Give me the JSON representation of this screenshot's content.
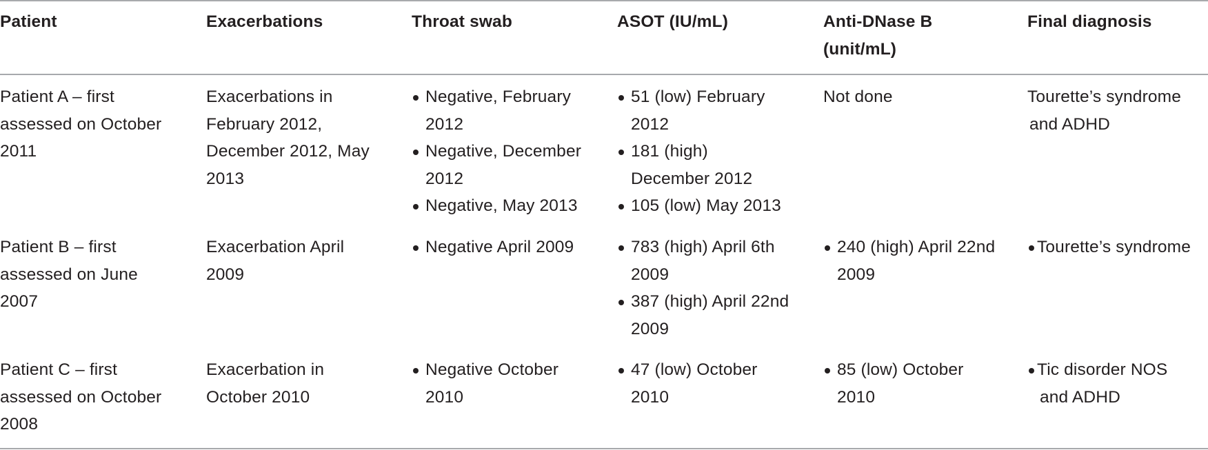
{
  "headers": {
    "patient": "Patient",
    "exacerbations": "Exacerbations",
    "throat_swab": "Throat swab",
    "asot": "ASOT (IU/mL)",
    "anti_dnase_line1": "Anti-DNase B",
    "anti_dnase_line2": "(unit/mL)",
    "final_diagnosis": "Final diagnosis"
  },
  "rows": [
    {
      "patient": [
        "Patient A – first",
        "assessed on October",
        "2011"
      ],
      "exacerbations": [
        "Exacerbations in",
        "February 2012,",
        "December 2012, May",
        "2013"
      ],
      "throat_swab": [
        [
          "Negative, February",
          "2012"
        ],
        [
          "Negative, December",
          "2012"
        ],
        [
          "Negative, May 2013"
        ]
      ],
      "asot": [
        [
          "51 (low) February",
          "2012"
        ],
        [
          "181 (high)",
          "December 2012"
        ],
        [
          "105 (low) May 2013"
        ]
      ],
      "anti_dnase": [
        "Not done"
      ],
      "final_diagnosis": [
        "Tourette’s syndrome",
        "and ADHD"
      ]
    },
    {
      "patient": [
        "Patient B – first",
        "assessed on June",
        "2007"
      ],
      "exacerbations": [
        "Exacerbation April",
        "2009"
      ],
      "throat_swab": [
        [
          "Negative April 2009"
        ]
      ],
      "asot": [
        [
          "783 (high) April 6th",
          "2009"
        ],
        [
          "387 (high) April 22nd",
          "2009"
        ]
      ],
      "anti_dnase": [
        [
          "240 (high) April 22nd",
          "2009"
        ]
      ],
      "final_diagnosis": [
        [
          "Tourette’s syndrome"
        ]
      ]
    },
    {
      "patient": [
        "Patient C – first",
        "assessed on October",
        "2008"
      ],
      "exacerbations": [
        "Exacerbation in",
        "October 2010"
      ],
      "throat_swab": [
        [
          "Negative October",
          "2010"
        ]
      ],
      "asot": [
        [
          "47 (low) October",
          "2010"
        ]
      ],
      "anti_dnase": [
        [
          "85 (low) October",
          "2010"
        ]
      ],
      "final_diagnosis": [
        [
          "Tic disorder NOS",
          "and ADHD"
        ]
      ]
    }
  ]
}
